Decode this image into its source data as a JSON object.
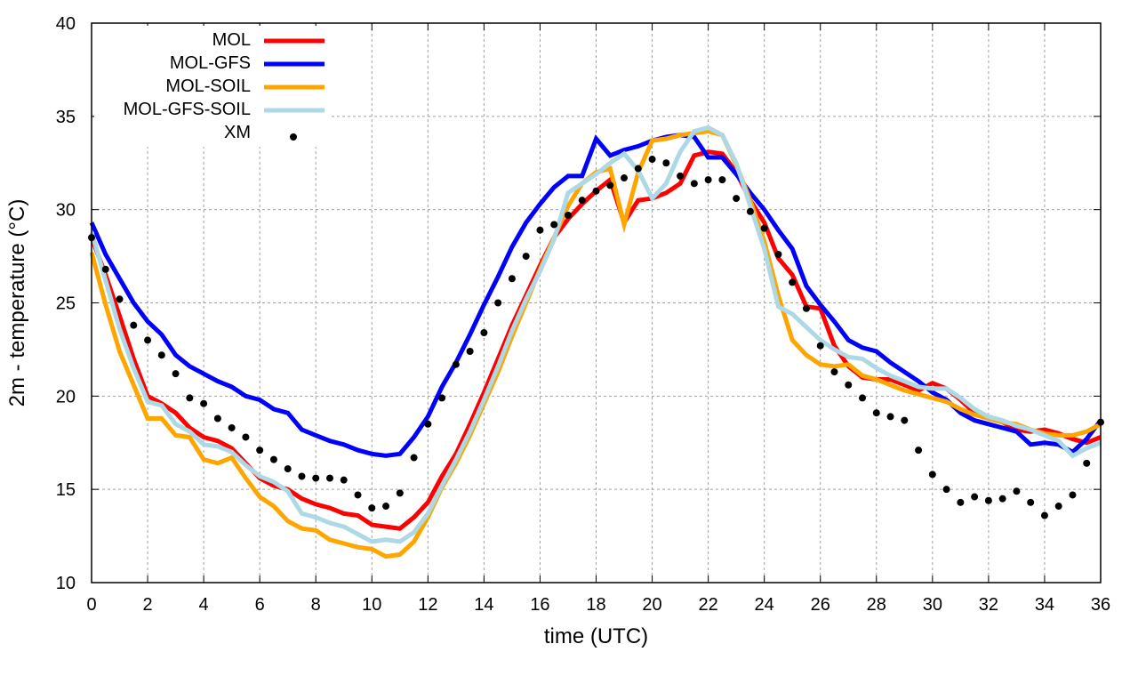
{
  "chart_data": {
    "type": "line",
    "title": "",
    "xlabel": "time (UTC)",
    "ylabel": "2m - temperature (°C)",
    "xlim": [
      0,
      36
    ],
    "ylim": [
      10,
      40
    ],
    "xticks": [
      0,
      2,
      4,
      6,
      8,
      10,
      12,
      14,
      16,
      18,
      20,
      22,
      24,
      26,
      28,
      30,
      32,
      34,
      36
    ],
    "yticks": [
      10,
      15,
      20,
      25,
      30,
      35,
      40
    ],
    "grid": true,
    "legend": "top-left",
    "x": [
      0,
      0.5,
      1,
      1.5,
      2,
      2.5,
      3,
      3.5,
      4,
      4.5,
      5,
      5.5,
      6,
      6.5,
      7,
      7.5,
      8,
      8.5,
      9,
      9.5,
      10,
      10.5,
      11,
      11.5,
      12,
      12.5,
      13,
      13.5,
      14,
      14.5,
      15,
      15.5,
      16,
      16.5,
      17,
      17.5,
      18,
      18.5,
      19,
      19.5,
      20,
      20.5,
      21,
      21.5,
      22,
      22.5,
      23,
      23.5,
      24,
      24.5,
      25,
      25.5,
      26,
      26.5,
      27,
      27.5,
      28,
      28.5,
      29,
      29.5,
      30,
      30.5,
      31,
      31.5,
      32,
      32.5,
      33,
      33.5,
      34,
      34.5,
      35,
      35.5,
      36
    ],
    "series": [
      {
        "name": "MOL",
        "color": "#ff0000",
        "style": "line",
        "values": [
          28.5,
          26.5,
          24.3,
          22.0,
          20.0,
          19.6,
          19.1,
          18.3,
          17.8,
          17.6,
          17.2,
          16.4,
          15.6,
          15.2,
          15.0,
          14.5,
          14.2,
          14.0,
          13.7,
          13.6,
          13.1,
          13.0,
          12.9,
          13.5,
          14.3,
          15.7,
          16.9,
          18.5,
          20.2,
          22.0,
          23.8,
          25.4,
          27.0,
          28.5,
          29.5,
          30.3,
          31.0,
          31.6,
          29.3,
          30.5,
          30.6,
          30.9,
          31.4,
          32.9,
          33.1,
          33.0,
          32.0,
          30.5,
          29.3,
          27.4,
          26.5,
          24.8,
          24.7,
          22.7,
          21.6,
          21.0,
          20.9,
          20.9,
          20.6,
          20.3,
          20.7,
          20.4,
          19.8,
          19.1,
          18.8,
          18.6,
          18.2,
          18.1,
          18.2,
          18.0,
          17.7,
          17.5,
          17.8
        ]
      },
      {
        "name": "MOL-GFS",
        "color": "#0000ff",
        "style": "line",
        "values": [
          29.3,
          27.6,
          26.3,
          25.0,
          24.0,
          23.3,
          22.2,
          21.6,
          21.2,
          20.8,
          20.5,
          20.0,
          19.8,
          19.3,
          19.1,
          18.2,
          17.9,
          17.6,
          17.4,
          17.1,
          16.9,
          16.8,
          16.9,
          17.8,
          18.9,
          20.5,
          21.8,
          23.3,
          24.9,
          26.4,
          28.0,
          29.3,
          30.3,
          31.2,
          31.8,
          31.8,
          33.8,
          32.9,
          33.2,
          33.4,
          33.7,
          33.9,
          34.0,
          33.9,
          32.8,
          32.8,
          31.9,
          30.9,
          30.0,
          28.9,
          27.9,
          25.9,
          24.9,
          24.0,
          23.0,
          22.6,
          22.4,
          21.8,
          21.3,
          20.8,
          20.2,
          19.8,
          19.1,
          18.7,
          18.5,
          18.3,
          18.1,
          17.4,
          17.5,
          17.4,
          17.0,
          17.7,
          18.7
        ]
      },
      {
        "name": "MOL-SOIL",
        "color": "#ffa500",
        "style": "line",
        "values": [
          27.7,
          24.9,
          22.4,
          20.6,
          18.8,
          18.8,
          17.9,
          17.8,
          16.6,
          16.4,
          16.7,
          15.6,
          14.6,
          14.1,
          13.3,
          12.9,
          12.8,
          12.3,
          12.1,
          11.9,
          11.8,
          11.4,
          11.5,
          12.2,
          13.5,
          15.1,
          16.4,
          17.9,
          19.6,
          21.3,
          23.2,
          25.0,
          26.8,
          28.5,
          30.2,
          31.4,
          32.0,
          32.2,
          29.2,
          32.0,
          33.7,
          33.8,
          34.0,
          34.1,
          34.2,
          34.0,
          32.4,
          30.5,
          28.3,
          25.4,
          23.0,
          22.2,
          21.7,
          21.6,
          21.7,
          21.1,
          20.9,
          20.6,
          20.3,
          20.1,
          19.9,
          19.7,
          19.3,
          19.0,
          18.8,
          18.6,
          18.5,
          18.2,
          18.0,
          17.9,
          17.9,
          18.1,
          18.5
        ]
      },
      {
        "name": "MOL-GFS-SOIL",
        "color": "#add8e6",
        "style": "line",
        "values": [
          28.8,
          26.2,
          23.6,
          21.5,
          19.7,
          19.5,
          18.5,
          18.1,
          17.4,
          17.3,
          17.0,
          16.3,
          15.7,
          15.4,
          14.9,
          13.7,
          13.5,
          13.2,
          13.0,
          12.6,
          12.2,
          12.3,
          12.2,
          12.7,
          13.7,
          15.2,
          16.6,
          18.1,
          19.8,
          21.6,
          23.5,
          25.2,
          26.7,
          28.4,
          30.9,
          31.4,
          31.9,
          32.5,
          33.0,
          32.1,
          30.6,
          31.4,
          33.1,
          34.2,
          34.4,
          34.0,
          32.5,
          30.2,
          27.9,
          24.8,
          24.4,
          23.7,
          23.0,
          22.5,
          22.1,
          22.0,
          21.5,
          21.1,
          20.8,
          20.5,
          20.4,
          20.4,
          19.9,
          19.3,
          18.9,
          18.7,
          18.4,
          18.2,
          17.9,
          17.6,
          16.8,
          17.2,
          17.5
        ]
      },
      {
        "name": "XM",
        "color": "#000000",
        "style": "points",
        "values": [
          28.5,
          26.8,
          25.2,
          23.8,
          23.0,
          22.2,
          21.2,
          19.9,
          19.6,
          18.8,
          18.3,
          17.8,
          17.1,
          16.6,
          16.1,
          15.7,
          15.6,
          15.6,
          15.5,
          14.7,
          14.0,
          14.1,
          14.8,
          16.7,
          18.5,
          19.9,
          21.7,
          22.4,
          23.4,
          25.0,
          26.3,
          27.5,
          28.9,
          29.2,
          29.7,
          30.5,
          31.0,
          31.3,
          31.7,
          32.2,
          32.7,
          32.5,
          31.8,
          31.4,
          31.6,
          31.6,
          30.6,
          29.9,
          29.0,
          27.6,
          26.1,
          24.7,
          22.7,
          21.3,
          20.6,
          19.9,
          19.1,
          18.9,
          18.7,
          17.1,
          15.8,
          15.0,
          14.3,
          14.6,
          14.4,
          14.5,
          14.9,
          14.3,
          13.6,
          14.1,
          14.7,
          16.4,
          18.6
        ]
      }
    ]
  }
}
